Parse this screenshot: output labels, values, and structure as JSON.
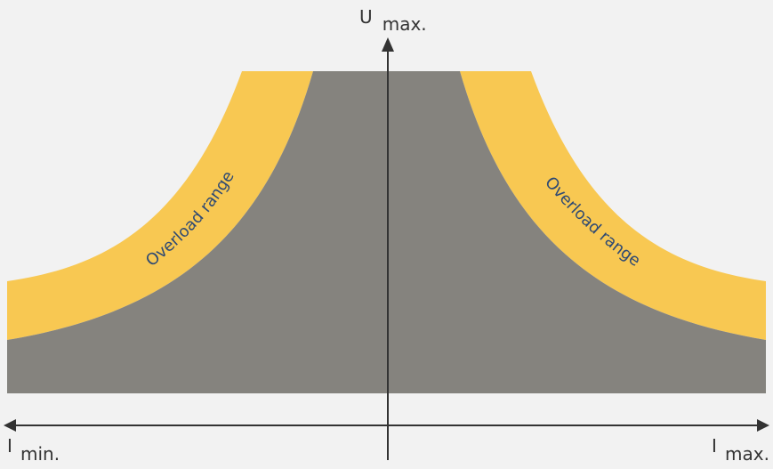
{
  "diagram": {
    "y_axis": {
      "label_main": "U",
      "label_sub": "max."
    },
    "x_axis": {
      "left_label_main": "I",
      "left_label_sub": "min.",
      "right_label_main": "I",
      "right_label_sub": "max."
    },
    "regions": {
      "left_overload": "Overload range",
      "right_overload": "Overload range"
    },
    "colors": {
      "background": "#f2f2f2",
      "operating_area": "#85837e",
      "overload_band": "#f8c852",
      "axis": "#333333",
      "band_text": "#2f4a73"
    }
  }
}
